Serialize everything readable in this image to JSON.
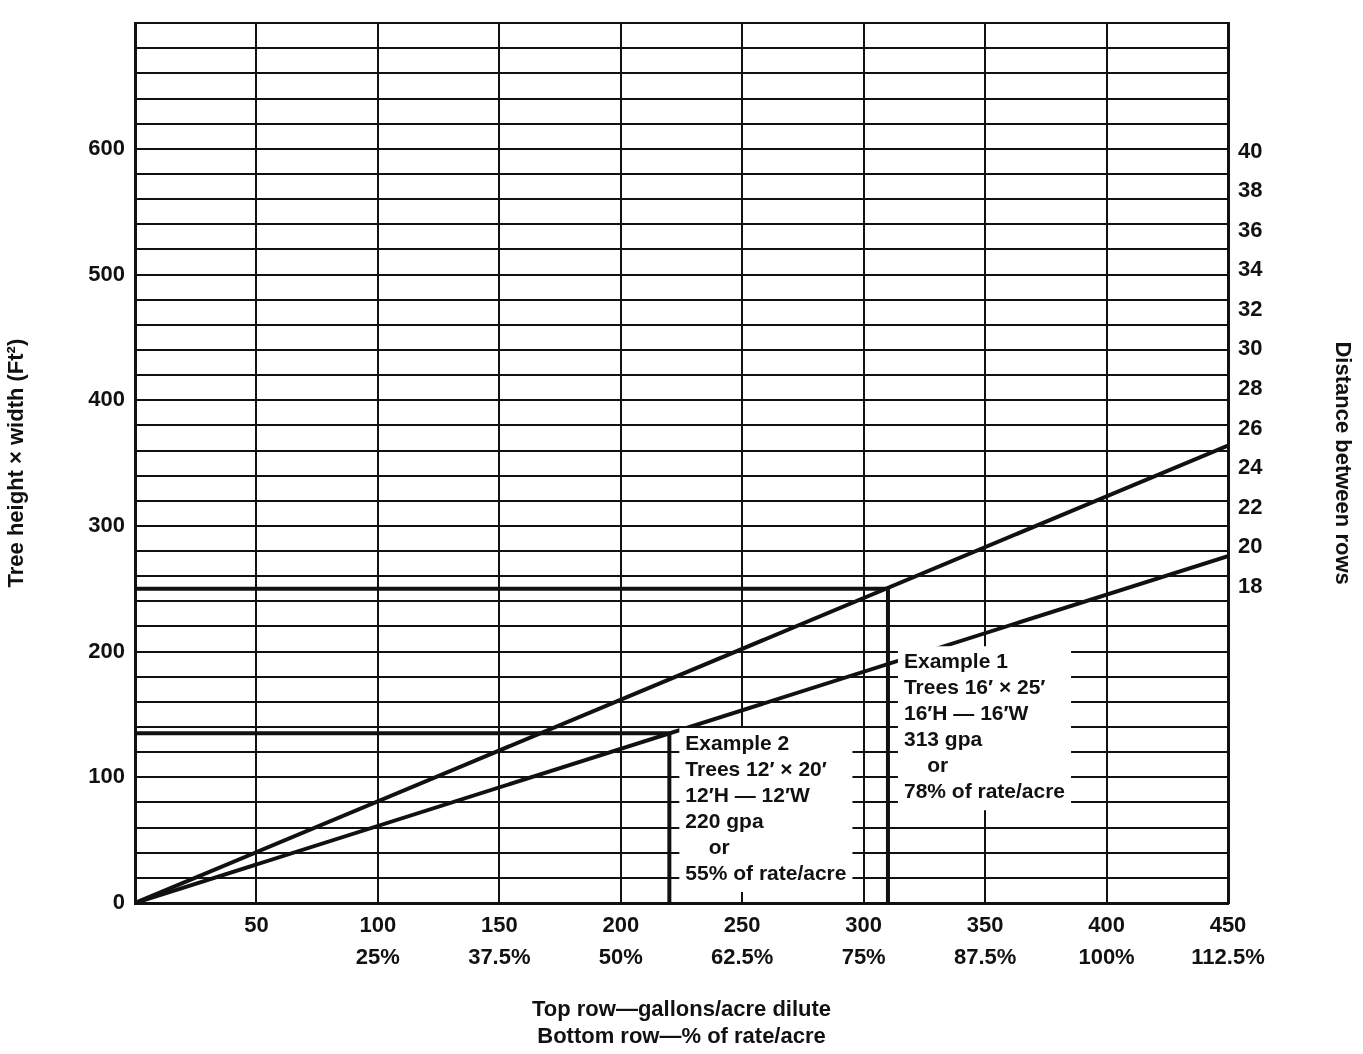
{
  "chart_data": {
    "type": "line",
    "xlabel": "Top row—gallons/acre dilute\nBottom row—% of rate/acre",
    "ylabel": "Tree height × width (Ft²)",
    "y2label": "Distance between rows",
    "xlim": [
      0,
      450
    ],
    "ylim": [
      0,
      700
    ],
    "y2lim": [
      2,
      46.5
    ],
    "xticks": [
      {
        "value": 0,
        "label": null
      },
      50,
      100,
      150,
      200,
      250,
      300,
      350,
      400,
      450
    ],
    "x2lim": [
      0,
      112.5
    ],
    "x2ticks": [
      {
        "value": 25,
        "label": "25%"
      },
      {
        "value": 37.5,
        "label": "37.5%"
      },
      {
        "value": 50,
        "label": "50%"
      },
      {
        "value": 62.5,
        "label": "62.5%"
      },
      {
        "value": 75,
        "label": "75%"
      },
      {
        "value": 87.5,
        "label": "87.5%"
      },
      {
        "value": 100,
        "label": "100%"
      },
      {
        "value": 112.5,
        "label": "112.5%"
      }
    ],
    "yticks": [
      0,
      {
        "value": 20,
        "label": null
      },
      {
        "value": 40,
        "label": null
      },
      {
        "value": 60,
        "label": null
      },
      {
        "value": 80,
        "label": null
      },
      100,
      {
        "value": 120,
        "label": null
      },
      {
        "value": 140,
        "label": null
      },
      {
        "value": 160,
        "label": null
      },
      {
        "value": 180,
        "label": null
      },
      200,
      {
        "value": 220,
        "label": null
      },
      {
        "value": 240,
        "label": null
      },
      {
        "value": 260,
        "label": null
      },
      {
        "value": 280,
        "label": null
      },
      300,
      {
        "value": 320,
        "label": null
      },
      {
        "value": 340,
        "label": null
      },
      {
        "value": 360,
        "label": null
      },
      {
        "value": 380,
        "label": null
      },
      400,
      {
        "value": 420,
        "label": null
      },
      {
        "value": 440,
        "label": null
      },
      {
        "value": 460,
        "label": null
      },
      {
        "value": 480,
        "label": null
      },
      500,
      {
        "value": 520,
        "label": null
      },
      {
        "value": 540,
        "label": null
      },
      {
        "value": 560,
        "label": null
      },
      {
        "value": 580,
        "label": null
      },
      600,
      {
        "value": 620,
        "label": null
      },
      {
        "value": 640,
        "label": null
      },
      {
        "value": 660,
        "label": null
      },
      {
        "value": 680,
        "label": null
      },
      {
        "value": 700,
        "label": null
      }
    ],
    "y2ticks": [
      18,
      20,
      22,
      24,
      26,
      28,
      30,
      32,
      34,
      36,
      38,
      40
    ],
    "grid": true,
    "legend": false,
    "marker": "none",
    "line_style": "solid",
    "series": [
      {
        "color": "#111111",
        "x": [
          0,
          450
        ],
        "values": [
          0,
          364
        ]
      },
      {
        "color": "#111111",
        "x": [
          0,
          450
        ],
        "values": [
          0,
          276
        ]
      },
      {
        "color": "#111111",
        "x": [
          0,
          310,
          310
        ],
        "values": [
          250,
          250,
          0
        ]
      },
      {
        "color": "#111111",
        "x": [
          0,
          220,
          220
        ],
        "values": [
          135,
          135,
          0
        ]
      }
    ],
    "annotations": [
      {
        "text": "Example 1\nTrees 16′ × 25′\n16′H — 16′W\n313 gpa\n    or\n78% of rate/acre",
        "x": 310,
        "y": 190
      },
      {
        "text": "Example 2\nTrees 12′ × 20′\n12′H — 12′W\n220 gpa\n    or\n55% of rate/acre",
        "x": 220,
        "y": 125
      }
    ]
  }
}
